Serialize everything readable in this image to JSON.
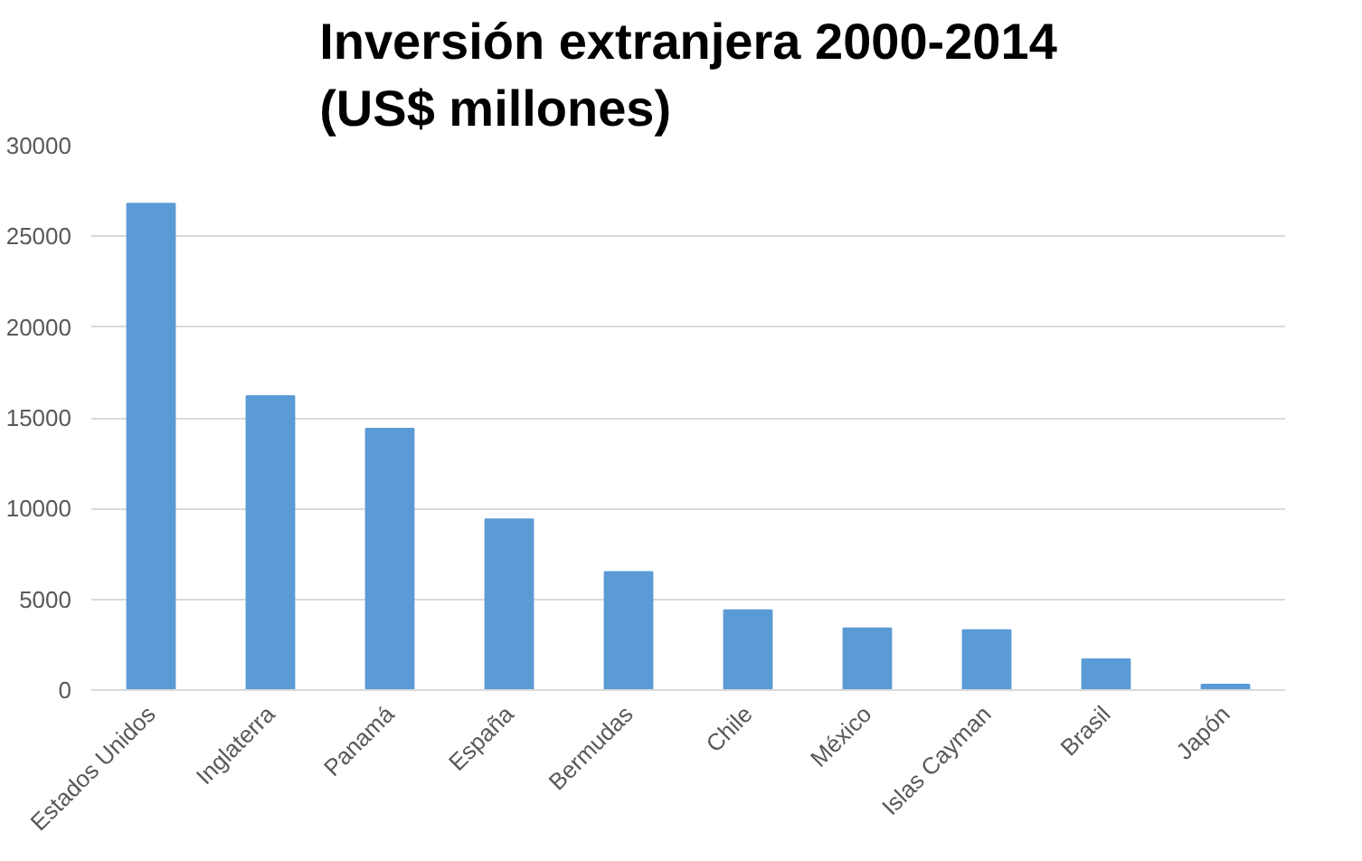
{
  "chart_data": {
    "type": "bar",
    "title": "Inversión extranjera 2000-2014\n(US$ millones)",
    "categories": [
      "Estados Unidos",
      "Inglaterra",
      "Panamá",
      "España",
      "Bermudas",
      "Chile",
      "México",
      "Islas Cayman",
      "Brasil",
      "Japón"
    ],
    "values": [
      26800,
      16200,
      14400,
      9400,
      6500,
      4400,
      3400,
      3300,
      1700,
      300
    ],
    "color": "#5b9bd5",
    "ylim": [
      0,
      30000
    ],
    "yticks": [
      0,
      5000,
      10000,
      15000,
      20000,
      25000,
      30000
    ],
    "grid": "y"
  }
}
